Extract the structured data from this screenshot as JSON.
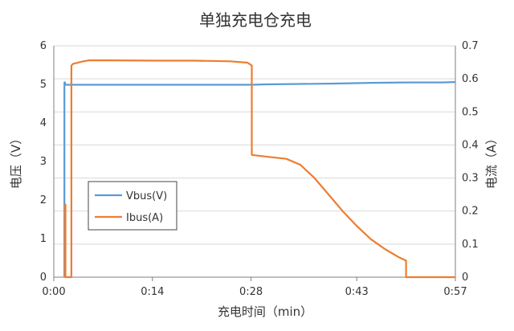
{
  "chart_data": {
    "type": "line",
    "title": "单独充电仓充电",
    "xlabel": "充电时间（min）",
    "ylabel_left": "电压（V）",
    "ylabel_right": "电流（A）",
    "x_unit": "min",
    "xlim": [
      0,
      57
    ],
    "ylim_left": [
      0,
      6
    ],
    "ylim_right": [
      0,
      0.7
    ],
    "x_ticks": [
      {
        "value": 0,
        "label": "0:00"
      },
      {
        "value": 14,
        "label": "0:14"
      },
      {
        "value": 28,
        "label": "0:28"
      },
      {
        "value": 43,
        "label": "0:43"
      },
      {
        "value": 57,
        "label": "0:57"
      }
    ],
    "y_ticks_left": [
      "0",
      "1",
      "2",
      "3",
      "4",
      "5",
      "6"
    ],
    "y_ticks_right": [
      "0",
      "0.1",
      "0.2",
      "0.3",
      "0.4",
      "0.5",
      "0.6",
      "0.7"
    ],
    "grid": "horizontal",
    "legend_position": "middle-left",
    "series": [
      {
        "name": "Vbus(V)",
        "axis": "left",
        "color": "#5b9bd5",
        "x": [
          1.5,
          1.5,
          1.6,
          1.6,
          2.5,
          10,
          20,
          28,
          30,
          35,
          40,
          45,
          50,
          55,
          57
        ],
        "y": [
          0,
          5.05,
          5.05,
          4.99,
          4.99,
          4.99,
          4.99,
          4.99,
          5.0,
          5.01,
          5.02,
          5.04,
          5.05,
          5.05,
          5.06
        ]
      },
      {
        "name": "Ibus(A)",
        "axis": "right",
        "color": "#ed7d31",
        "x": [
          1.6,
          1.6,
          1.65,
          1.65,
          2.5,
          2.5,
          2.7,
          3.2,
          4,
          5,
          8,
          15,
          20,
          25,
          27.5,
          28,
          28.1,
          28.1,
          30,
          33,
          35,
          37,
          39,
          41,
          43,
          45,
          47,
          49,
          50,
          50,
          57
        ],
        "y": [
          0,
          0.22,
          0.22,
          0,
          0,
          0.64,
          0.645,
          0.648,
          0.652,
          0.656,
          0.656,
          0.655,
          0.655,
          0.653,
          0.649,
          0.642,
          0.64,
          0.37,
          0.365,
          0.358,
          0.34,
          0.3,
          0.25,
          0.2,
          0.155,
          0.115,
          0.085,
          0.06,
          0.05,
          0,
          0
        ]
      }
    ]
  }
}
